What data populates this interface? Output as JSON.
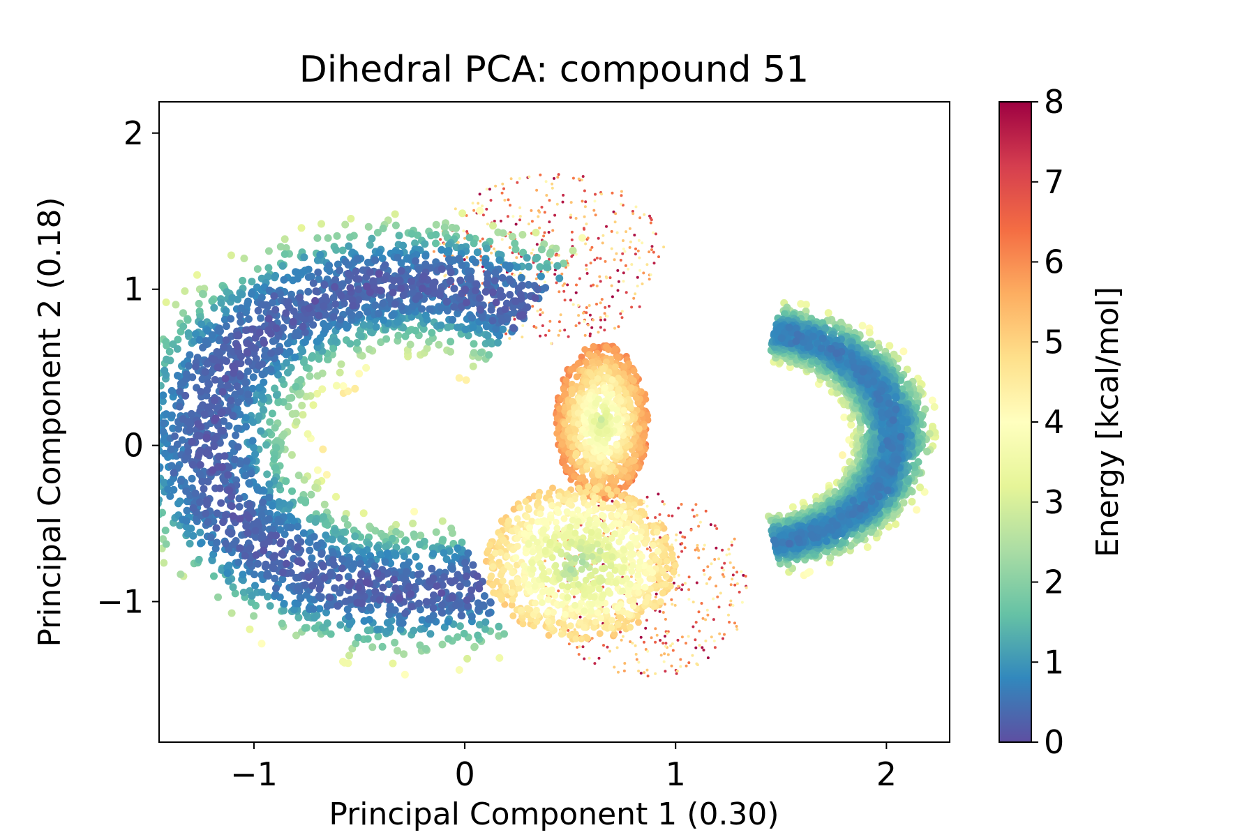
{
  "chart_data": {
    "type": "scatter",
    "title": "Dihedral PCA: compound 51",
    "xlabel": "Principal Component 1 (0.30)",
    "ylabel": "Principal Component 2 (0.18)",
    "xlim": [
      -1.45,
      2.3
    ],
    "ylim": [
      -1.9,
      2.2
    ],
    "xticks": [
      -1,
      0,
      1,
      2
    ],
    "xtick_labels": [
      "−1",
      "0",
      "1",
      "2"
    ],
    "yticks": [
      -1,
      0,
      1,
      2
    ],
    "ytick_labels": [
      "−1",
      "0",
      "1",
      "2"
    ],
    "grid": false,
    "legend": "none",
    "colorbar": {
      "label": "Energy [kcal/mol]",
      "min": 0,
      "max": 8,
      "ticks": [
        0,
        1,
        2,
        3,
        4,
        5,
        6,
        7,
        8
      ],
      "tick_labels": [
        "0",
        "1",
        "2",
        "3",
        "4",
        "5",
        "6",
        "7",
        "8"
      ],
      "colormap": "Spectral_r",
      "stops": [
        "#5e4fa2",
        "#3288bd",
        "#66c2a5",
        "#abdda4",
        "#e6f598",
        "#ffffbf",
        "#fee08b",
        "#fdae61",
        "#f46d43",
        "#d53e4f",
        "#9e0142"
      ]
    },
    "regions": [
      {
        "shape": "arc",
        "cx": -0.25,
        "cy": 0.05,
        "r_inner": 0.55,
        "r_outer": 1.6,
        "deg_from": 55,
        "deg_to": 290,
        "energy_low": 0.3,
        "energy_high": 4.5,
        "valley_offset": -0.35
      },
      {
        "shape": "arc",
        "cx": 1.35,
        "cy": 0.05,
        "r_inner": 0.4,
        "r_outer": 0.85,
        "deg_from": -80,
        "deg_to": 80,
        "energy_low": 0.8,
        "energy_high": 4.5,
        "valley_offset": 0.25
      },
      {
        "shape": "blob",
        "cx": 0.55,
        "cy": -0.75,
        "rx": 0.45,
        "ry": 0.5,
        "energy_low": 2.5,
        "energy_high": 5
      },
      {
        "shape": "blob",
        "cx": 0.65,
        "cy": 0.15,
        "rx": 0.22,
        "ry": 0.5,
        "energy_low": 3,
        "energy_high": 6
      },
      {
        "shape": "sparse",
        "cx": 0.4,
        "cy": 1.2,
        "rx": 0.55,
        "ry": 0.55,
        "energy_low": 4,
        "energy_high": 8
      },
      {
        "shape": "sparse",
        "cx": 0.85,
        "cy": -0.9,
        "rx": 0.5,
        "ry": 0.6,
        "energy_low": 4,
        "energy_high": 8
      }
    ]
  }
}
